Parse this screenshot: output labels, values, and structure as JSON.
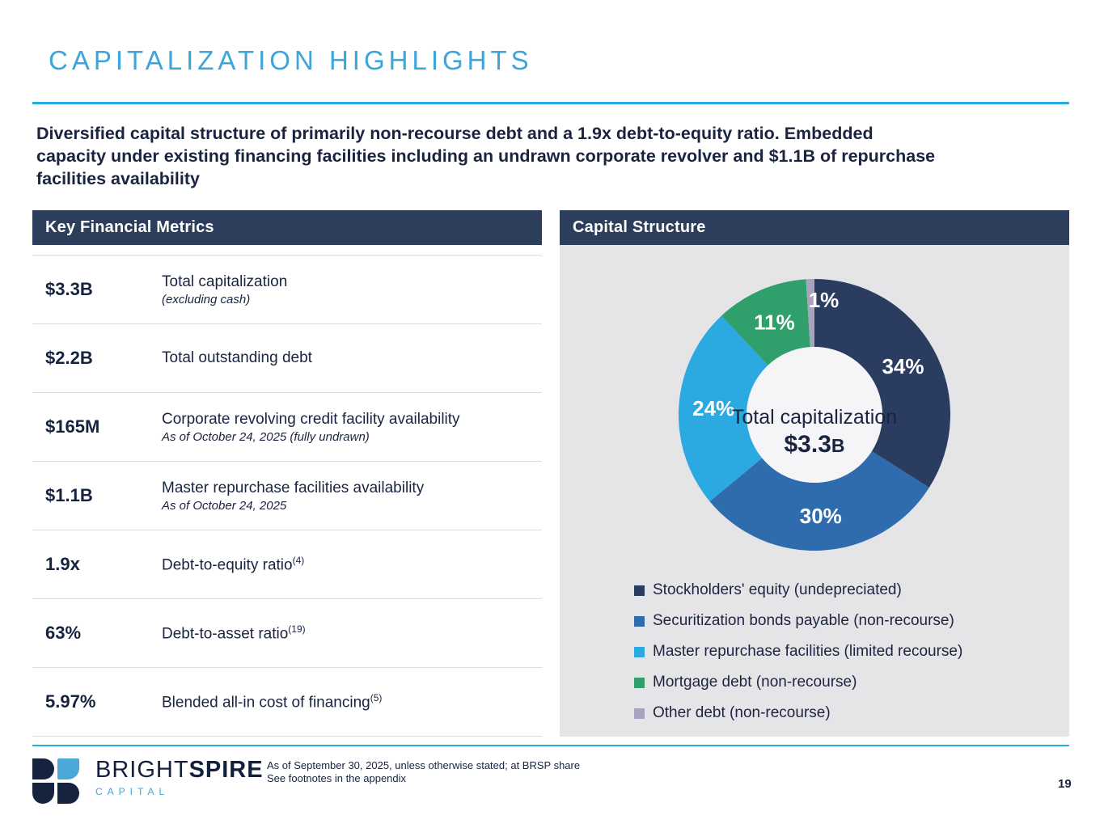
{
  "slide": {
    "title": "CAPITALIZATION HIGHLIGHTS",
    "intro_lines": [
      "Diversified capital structure of primarily non-recourse debt and a 1.9x debt-to-equity ratio. Embedded",
      "capacity under existing financing facilities including an undrawn corporate revolver and $1.1B of repurchase",
      "facilities availability"
    ]
  },
  "metrics_panel": {
    "header": "Key Financial Metrics",
    "rows": [
      {
        "value": "$3.3B",
        "label": "Total capitalization",
        "sup": "",
        "note": "(excluding cash)"
      },
      {
        "value": "$2.2B",
        "label": "Total outstanding debt",
        "sup": "",
        "note": ""
      },
      {
        "value": "$165M",
        "label": "Corporate revolving credit facility availability",
        "sup": "",
        "note": "As of October 24, 2025 (fully undrawn)"
      },
      {
        "value": "$1.1B",
        "label": "Master repurchase facilities availability",
        "sup": "",
        "note": "As of October 24, 2025"
      },
      {
        "value": "1.9x",
        "label": "Debt-to-equity ratio",
        "sup": "(4)",
        "note": ""
      },
      {
        "value": "63%",
        "label": "Debt-to-asset ratio",
        "sup": "(19)",
        "note": ""
      },
      {
        "value": "5.97%",
        "label": "Blended all-in cost of financing",
        "sup": "(5)",
        "note": ""
      }
    ]
  },
  "capital_panel": {
    "header": "Capital Structure",
    "center_label": {
      "title": "Total capitalization",
      "value": "$3.3",
      "suffix": "B"
    }
  },
  "chart_data": {
    "type": "pie",
    "subtype": "donut",
    "title": "Capital Structure",
    "center_text": "Total capitalization $3.3B",
    "start_angle_deg": 0,
    "direction": "clockwise",
    "legend_position": "bottom-left",
    "slices": [
      {
        "label": "Stockholders' equity (undepreciated)",
        "value": 34,
        "display": "34%",
        "color": "#2a3c5f"
      },
      {
        "label": "Securitization bonds payable (non-recourse)",
        "value": 30,
        "display": "30%",
        "color": "#2e6cad"
      },
      {
        "label": "Master repurchase facilities (limited recourse)",
        "value": 24,
        "display": "24%",
        "color": "#2ba9e0"
      },
      {
        "label": "Mortgage debt (non-recourse)",
        "value": 11,
        "display": "11%",
        "color": "#2f9f6c"
      },
      {
        "label": "Other debt (non-recourse)",
        "value": 1,
        "display": "1%",
        "color": "#a7a4c0"
      }
    ]
  },
  "footer": {
    "brand": {
      "name_regular": "BRIGHT",
      "name_bold": "SPIRE",
      "subtitle": "CAPITAL"
    },
    "note_lines": [
      "As of September 30, 2025, unless otherwise stated; at BRSP share",
      "See footnotes in the appendix"
    ],
    "page_number": "19"
  },
  "colors": {
    "accent_blue": "#29abe2",
    "title_blue": "#3da5db",
    "navy_text": "#1a2441",
    "header_bar": "#2c3e5b",
    "panel_bg": "#e5e4e7",
    "donut_hole": "#f5f4f6"
  }
}
